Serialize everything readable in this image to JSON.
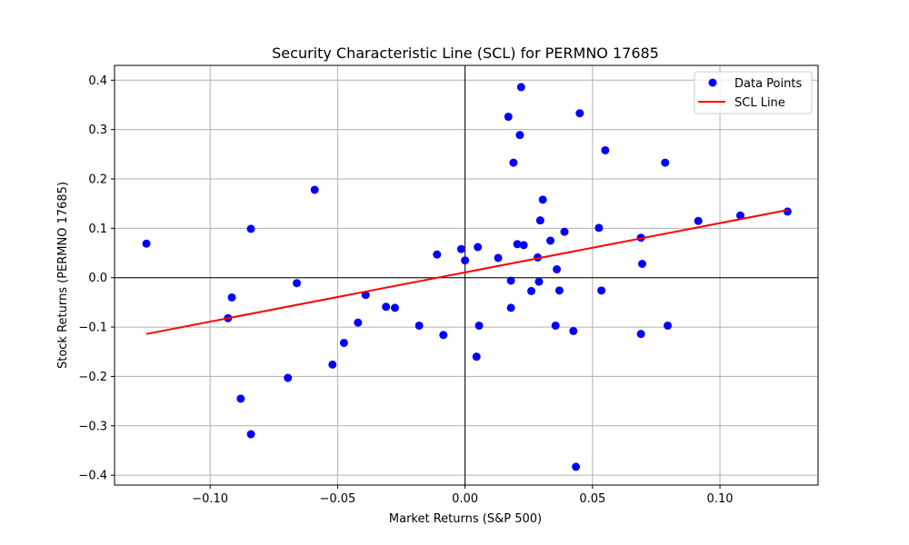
{
  "chart_data": {
    "type": "scatter",
    "title": "Security Characteristic Line (SCL) for PERMNO 17685",
    "xlabel": "Market Returns (S&P 500)",
    "ylabel": "Stock Returns (PERMNO 17685)",
    "xlim": [
      -0.1375,
      0.1385
    ],
    "ylim": [
      -0.42,
      0.43
    ],
    "xticks": [
      -0.1,
      -0.05,
      0.0,
      0.05,
      0.1
    ],
    "xtick_labels": [
      "−0.10",
      "−0.05",
      "0.00",
      "0.05",
      "0.10"
    ],
    "yticks": [
      -0.4,
      -0.3,
      -0.2,
      -0.1,
      0.0,
      0.1,
      0.2,
      0.3,
      0.4
    ],
    "ytick_labels": [
      "−0.4",
      "−0.3",
      "−0.2",
      "−0.1",
      "0.0",
      "0.1",
      "0.2",
      "0.3",
      "0.4"
    ],
    "grid": true,
    "legend_position": "top-right",
    "series": [
      {
        "name": "Data Points",
        "kind": "scatter",
        "color": "#0000ff",
        "points": [
          [
            -0.125,
            0.069
          ],
          [
            -0.093,
            -0.082
          ],
          [
            -0.0915,
            -0.04
          ],
          [
            -0.088,
            -0.245
          ],
          [
            -0.084,
            0.099
          ],
          [
            -0.084,
            -0.317
          ],
          [
            -0.0695,
            -0.203
          ],
          [
            -0.066,
            -0.011
          ],
          [
            -0.059,
            0.178
          ],
          [
            -0.052,
            -0.176
          ],
          [
            -0.0475,
            -0.132
          ],
          [
            -0.042,
            -0.091
          ],
          [
            -0.039,
            -0.035
          ],
          [
            -0.031,
            -0.059
          ],
          [
            -0.0275,
            -0.061
          ],
          [
            -0.018,
            -0.097
          ],
          [
            -0.011,
            0.047
          ],
          [
            -0.0085,
            -0.116
          ],
          [
            -0.0015,
            0.058
          ],
          [
            0.0,
            0.035
          ],
          [
            0.0045,
            -0.16
          ],
          [
            0.005,
            0.062
          ],
          [
            0.0055,
            -0.097
          ],
          [
            0.013,
            0.04
          ],
          [
            0.017,
            0.326
          ],
          [
            0.018,
            -0.006
          ],
          [
            0.018,
            -0.061
          ],
          [
            0.019,
            0.233
          ],
          [
            0.0205,
            0.068
          ],
          [
            0.0215,
            0.289
          ],
          [
            0.022,
            0.386
          ],
          [
            0.023,
            0.066
          ],
          [
            0.026,
            -0.027
          ],
          [
            0.0285,
            0.041
          ],
          [
            0.029,
            -0.008
          ],
          [
            0.0295,
            0.116
          ],
          [
            0.0305,
            0.158
          ],
          [
            0.0335,
            0.075
          ],
          [
            0.0355,
            -0.097
          ],
          [
            0.036,
            0.017
          ],
          [
            0.037,
            -0.026
          ],
          [
            0.039,
            0.093
          ],
          [
            0.0425,
            -0.108
          ],
          [
            0.0435,
            -0.383
          ],
          [
            0.045,
            0.333
          ],
          [
            0.0525,
            0.101
          ],
          [
            0.0535,
            -0.026
          ],
          [
            0.055,
            0.258
          ],
          [
            0.069,
            -0.114
          ],
          [
            0.069,
            0.081
          ],
          [
            0.0695,
            0.028
          ],
          [
            0.0785,
            0.233
          ],
          [
            0.0795,
            -0.097
          ],
          [
            0.0915,
            0.115
          ],
          [
            0.108,
            0.126
          ],
          [
            0.1265,
            0.134
          ]
        ]
      },
      {
        "name": "SCL Line",
        "kind": "line",
        "color": "#ff0000",
        "points": [
          [
            -0.125,
            -0.114
          ],
          [
            0.1265,
            0.137
          ]
        ]
      }
    ]
  }
}
